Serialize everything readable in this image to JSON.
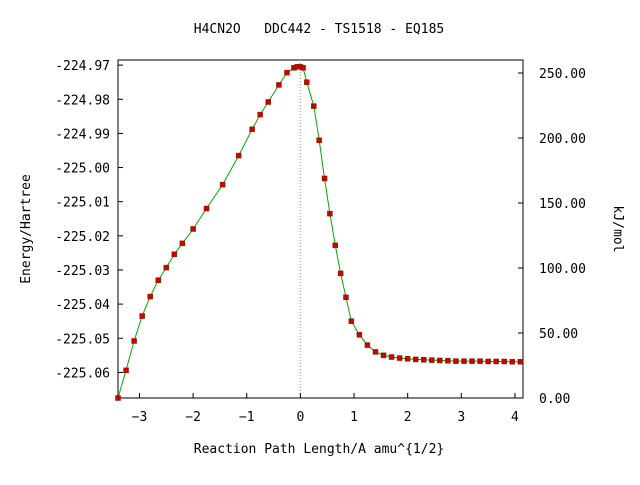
{
  "chart_data": {
    "type": "scatter",
    "title": "H4CN2O   DDC442 - TS1518 - EQ185",
    "xlabel": "Reaction Path Length/A amu^{1/2}",
    "ylabel": "Energy/Hartree",
    "y2label": "kJ/mol",
    "xlim": [
      -3.4,
      4.15
    ],
    "ylim": [
      -225.0675,
      -224.9685
    ],
    "y2lim": [
      0.0,
      260.0
    ],
    "xticks": [
      -3,
      -2,
      -1,
      0,
      1,
      2,
      3,
      4
    ],
    "xtick_labels": [
      "−3",
      "−2",
      "−1",
      "0",
      "1",
      "2",
      "3",
      "4"
    ],
    "yticks": [
      -224.97,
      -224.98,
      -224.99,
      -225.0,
      -225.01,
      -225.02,
      -225.03,
      -225.04,
      -225.05,
      -225.06
    ],
    "ytick_labels": [
      "-224.97",
      "-224.98",
      "-224.99",
      "-225.00",
      "-225.01",
      "-225.02",
      "-225.03",
      "-225.04",
      "-225.05",
      "-225.06"
    ],
    "y2ticks": [
      0,
      50,
      100,
      150,
      200,
      250
    ],
    "y2tick_labels": [
      "0.00",
      "50.00",
      "100.00",
      "150.00",
      "200.00",
      "250.00"
    ],
    "ts_marker_x": 0.0,
    "grid": false,
    "line_color": "#00aa00",
    "point_color": "#cc0000",
    "ts_line_color": "#999999",
    "series": [
      {
        "x": [
          -3.4,
          -3.25,
          -3.1,
          -2.95,
          -2.8,
          -2.65,
          -2.5,
          -2.35,
          -2.2,
          -2.0,
          -1.75,
          -1.45,
          -1.15,
          -0.9,
          -0.75,
          -0.6,
          -0.4,
          -0.25,
          -0.12,
          -0.06,
          0.0,
          0.05,
          0.12,
          0.25,
          0.35,
          0.45,
          0.55,
          0.65,
          0.75,
          0.85,
          0.95,
          1.1,
          1.25,
          1.4,
          1.55,
          1.7,
          1.85,
          2.0,
          2.15,
          2.3,
          2.45,
          2.6,
          2.75,
          2.9,
          3.05,
          3.2,
          3.35,
          3.5,
          3.65,
          3.8,
          3.95,
          4.1
        ],
        "y": [
          -225.0675,
          -225.0594,
          -225.0508,
          -225.0435,
          -225.0378,
          -225.033,
          -225.0293,
          -225.0254,
          -225.0222,
          -225.018,
          -225.012,
          -225.005,
          -224.9965,
          -224.9888,
          -224.9845,
          -224.9808,
          -224.9758,
          -224.9722,
          -224.9708,
          -224.9705,
          -224.9705,
          -224.9708,
          -224.975,
          -224.982,
          -224.992,
          -225.0032,
          -225.0135,
          -225.0228,
          -225.031,
          -225.038,
          -225.045,
          -225.049,
          -225.052,
          -225.054,
          -225.055,
          -225.0555,
          -225.0558,
          -225.056,
          -225.0562,
          -225.0563,
          -225.0564,
          -225.0565,
          -225.0566,
          -225.0567,
          -225.0567,
          -225.0567,
          -225.0567,
          -225.0568,
          -225.0568,
          -225.0568,
          -225.0569,
          -225.0569
        ]
      }
    ]
  }
}
